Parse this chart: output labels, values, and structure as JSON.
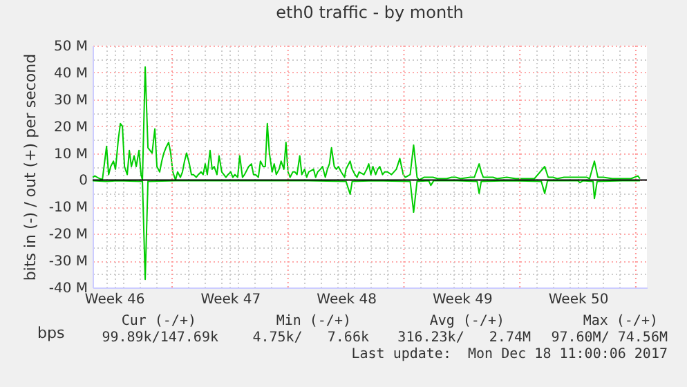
{
  "chart_data": {
    "type": "line",
    "title": "eth0 traffic - by month",
    "ylabel": "bits in (-) / out (+) per second",
    "xlim": [
      "2017-11-15T04:48",
      "2017-12-18T16:06"
    ],
    "ylim": [
      -40000000,
      50000000
    ],
    "xticks": [
      {
        "value": "2017-11-16T12:00",
        "label": "Week 46"
      },
      {
        "value": "2017-11-23T12:00",
        "label": "Week 47"
      },
      {
        "value": "2017-11-30T12:00",
        "label": "Week 48"
      },
      {
        "value": "2017-12-07T12:00",
        "label": "Week 49"
      },
      {
        "value": "2017-12-14T12:00",
        "label": "Week 50"
      },
      {
        "value": "2017-11-16T00:00",
        "label": null
      },
      {
        "value": "2017-11-17T00:00",
        "label": null
      },
      {
        "value": "2017-11-18T00:00",
        "label": null
      },
      {
        "value": "2017-11-19T00:00",
        "label": null
      },
      {
        "value": "2017-11-21T00:00",
        "label": null
      },
      {
        "value": "2017-11-22T00:00",
        "label": null
      },
      {
        "value": "2017-11-23T00:00",
        "label": null
      },
      {
        "value": "2017-11-24T00:00",
        "label": null
      },
      {
        "value": "2017-11-25T00:00",
        "label": null
      },
      {
        "value": "2017-11-26T00:00",
        "label": null
      },
      {
        "value": "2017-11-28T00:00",
        "label": null
      },
      {
        "value": "2017-11-29T00:00",
        "label": null
      },
      {
        "value": "2017-11-30T00:00",
        "label": null
      },
      {
        "value": "2017-12-01T00:00",
        "label": null
      },
      {
        "value": "2017-12-02T00:00",
        "label": null
      },
      {
        "value": "2017-12-03T00:00",
        "label": null
      },
      {
        "value": "2017-12-05T00:00",
        "label": null
      },
      {
        "value": "2017-12-06T00:00",
        "label": null
      },
      {
        "value": "2017-12-07T00:00",
        "label": null
      },
      {
        "value": "2017-12-08T00:00",
        "label": null
      },
      {
        "value": "2017-12-09T00:00",
        "label": null
      },
      {
        "value": "2017-12-10T00:00",
        "label": null
      },
      {
        "value": "2017-12-12T00:00",
        "label": null
      },
      {
        "value": "2017-12-13T00:00",
        "label": null
      },
      {
        "value": "2017-12-14T00:00",
        "label": null
      },
      {
        "value": "2017-12-15T00:00",
        "label": null
      },
      {
        "value": "2017-12-16T00:00",
        "label": null
      },
      {
        "value": "2017-12-17T00:00",
        "label": null
      }
    ],
    "yticks": [
      {
        "value": 50000000,
        "label": "50 M"
      },
      {
        "value": 40000000,
        "label": "40 M"
      },
      {
        "value": 30000000,
        "label": "30 M"
      },
      {
        "value": 20000000,
        "label": "20 M"
      },
      {
        "value": 10000000,
        "label": "10 M"
      },
      {
        "value": 0,
        "label": "0"
      },
      {
        "value": -10000000,
        "label": "-10 M"
      },
      {
        "value": -20000000,
        "label": "-20 M"
      },
      {
        "value": -30000000,
        "label": "-30 M"
      },
      {
        "value": -40000000,
        "label": "-40 M"
      },
      {
        "value": 45000000,
        "label": null
      },
      {
        "value": 35000000,
        "label": null
      },
      {
        "value": 25000000,
        "label": null
      },
      {
        "value": 15000000,
        "label": null
      },
      {
        "value": 5000000,
        "label": null
      },
      {
        "value": -5000000,
        "label": null
      },
      {
        "value": -15000000,
        "label": null
      },
      {
        "value": -25000000,
        "label": null
      },
      {
        "value": -35000000,
        "label": null
      }
    ],
    "grid": true,
    "legend": "bottom left",
    "series": [
      {
        "name": "bps",
        "color": "#00cc00",
        "x": [
          "2017-11-15T05:00",
          "2017-11-15T08:00",
          "2017-11-15T15:00",
          "2017-11-15T19:00",
          "2017-11-16T01:00",
          "2017-11-16T04:00",
          "2017-11-16T07:00",
          "2017-11-16T11:00",
          "2017-11-16T14:00",
          "2017-11-16T18:00",
          "2017-11-16T21:00",
          "2017-11-17T00:00",
          "2017-11-17T03:00",
          "2017-11-17T07:00",
          "2017-11-17T10:00",
          "2017-11-17T13:00",
          "2017-11-17T17:00",
          "2017-11-17T20:00",
          "2017-11-18T00:00",
          "2017-11-18T03:00",
          "2017-11-18T05:00",
          "2017-11-18T09:00",
          "2017-11-18T13:00",
          "2017-11-18T16:00",
          "2017-11-18T19:00",
          "2017-11-18T23:00",
          "2017-11-19T02:00",
          "2017-11-19T06:00",
          "2017-11-19T09:00",
          "2017-11-19T12:00",
          "2017-11-19T15:00",
          "2017-11-19T19:00",
          "2017-11-19T22:00",
          "2017-11-20T01:00",
          "2017-11-20T05:00",
          "2017-11-20T08:00",
          "2017-11-20T12:00",
          "2017-11-20T15:00",
          "2017-11-20T18:00",
          "2017-11-20T21:00",
          "2017-11-21T01:00",
          "2017-11-21T04:00",
          "2017-11-21T07:00",
          "2017-11-21T11:00",
          "2017-11-21T14:00",
          "2017-11-21T18:00",
          "2017-11-21T21:00",
          "2017-11-22T00:00",
          "2017-11-22T03:00",
          "2017-11-22T07:00",
          "2017-11-22T10:00",
          "2017-11-22T13:00",
          "2017-11-22T17:00",
          "2017-11-22T20:00",
          "2017-11-23T00:00",
          "2017-11-23T03:00",
          "2017-11-23T06:00",
          "2017-11-23T09:00",
          "2017-11-23T13:00",
          "2017-11-23T16:00",
          "2017-11-23T19:00",
          "2017-11-23T23:00",
          "2017-11-24T02:00",
          "2017-11-24T06:00",
          "2017-11-24T09:00",
          "2017-11-24T15:00",
          "2017-11-24T19:00",
          "2017-11-24T22:00",
          "2017-11-25T01:00",
          "2017-11-25T05:00",
          "2017-11-25T08:00",
          "2017-11-25T12:00",
          "2017-11-25T15:00",
          "2017-11-25T18:00",
          "2017-11-25T21:00",
          "2017-11-26T01:00",
          "2017-11-26T04:00",
          "2017-11-26T07:00",
          "2017-11-26T11:00",
          "2017-11-26T14:00",
          "2017-11-26T18:00",
          "2017-11-26T21:00",
          "2017-11-27T00:00",
          "2017-11-27T03:00",
          "2017-11-27T07:00",
          "2017-11-27T10:00",
          "2017-11-27T13:00",
          "2017-11-27T17:00",
          "2017-11-27T20:00",
          "2017-11-28T00:00",
          "2017-11-28T03:00",
          "2017-11-28T06:00",
          "2017-11-28T13:00",
          "2017-11-28T16:00",
          "2017-11-28T19:00",
          "2017-11-28T23:00",
          "2017-11-29T02:00",
          "2017-11-29T06:00",
          "2017-11-29T09:00",
          "2017-11-29T12:00",
          "2017-11-29T15:00",
          "2017-11-29T19:00",
          "2017-11-29T22:00",
          "2017-11-30T01:00",
          "2017-11-30T05:00",
          "2017-11-30T10:00",
          "2017-11-30T12:00",
          "2017-11-30T18:00",
          "2017-11-30T21:00",
          "2017-12-01T01:00",
          "2017-12-01T04:00",
          "2017-12-01T07:00",
          "2017-12-01T14:00",
          "2017-12-01T18:00",
          "2017-12-01T21:00",
          "2017-12-02T00:00",
          "2017-12-02T03:00",
          "2017-12-02T07:00",
          "2017-12-02T10:00",
          "2017-12-02T13:00",
          "2017-12-02T17:00",
          "2017-12-02T20:00",
          "2017-12-03T00:00",
          "2017-12-03T06:00",
          "2017-12-03T13:00",
          "2017-12-03T18:00",
          "2017-12-03T23:00",
          "2017-12-04T02:00",
          "2017-12-04T09:00",
          "2017-12-04T14:00",
          "2017-12-04T19:00",
          "2017-12-04T22:00",
          "2017-12-05T05:00",
          "2017-12-05T12:00",
          "2017-12-05T18:00",
          "2017-12-06T01:00",
          "2017-12-06T14:00",
          "2017-12-06T21:00",
          "2017-12-07T03:00",
          "2017-12-07T10:00",
          "2017-12-08T00:00",
          "2017-12-08T06:00",
          "2017-12-08T13:00",
          "2017-12-08T16:00",
          "2017-12-08T19:00",
          "2017-12-09T02:00",
          "2017-12-09T09:00",
          "2017-12-09T15:00",
          "2017-12-10T05:00",
          "2017-12-10T18:00",
          "2017-12-11T07:00",
          "2017-12-11T21:00",
          "2017-12-12T12:00",
          "2017-12-12T17:00",
          "2017-12-13T00:00",
          "2017-12-13T06:00",
          "2017-12-13T16:00",
          "2017-12-14T02:00",
          "2017-12-14T15:00",
          "2017-12-15T01:00",
          "2017-12-15T05:00",
          "2017-12-15T12:00",
          "2017-12-15T17:00",
          "2017-12-16T01:00",
          "2017-12-16T14:00",
          "2017-12-17T03:00",
          "2017-12-17T17:00",
          "2017-12-18T03:00",
          "2017-12-18T06:00"
        ],
        "values": [
          1000000,
          1500000,
          500000,
          200000,
          12500000,
          2000000,
          5000000,
          7000000,
          4000000,
          15000000,
          21000000,
          20000000,
          5000000,
          2000000,
          11000000,
          5000000,
          9000000,
          5000000,
          11000000,
          2000000,
          0,
          42000000,
          12000000,
          11000000,
          10000000,
          19000000,
          5000000,
          3000000,
          7000000,
          10000000,
          12000000,
          14000000,
          10000000,
          3000000,
          0,
          3000000,
          1000000,
          3000000,
          7000000,
          10000000,
          6000000,
          2000000,
          2000000,
          1000000,
          2000000,
          3000000,
          2000000,
          6000000,
          2000000,
          11000000,
          4000000,
          5000000,
          2000000,
          9000000,
          3000000,
          2000000,
          1000000,
          2000000,
          3000000,
          1000000,
          2000000,
          1000000,
          9000000,
          1000000,
          2000000,
          5000000,
          6000000,
          2000000,
          2000000,
          1000000,
          7000000,
          5000000,
          5000000,
          21000000,
          10000000,
          3000000,
          6000000,
          2000000,
          4000000,
          7000000,
          4000000,
          14000000,
          3000000,
          1000000,
          3000000,
          3000000,
          2000000,
          9000000,
          2000000,
          4000000,
          1000000,
          3000000,
          4000000,
          1000000,
          3000000,
          4000000,
          5000000,
          1000000,
          4000000,
          6000000,
          12000000,
          5000000,
          4000000,
          5000000,
          3000000,
          1000000,
          4000000,
          7000000,
          4000000,
          2000000,
          1000000,
          3000000,
          2000000,
          4000000,
          6000000,
          2000000,
          5000000,
          2000000,
          4000000,
          5000000,
          2000000,
          3000000,
          3000000,
          2000000,
          4000000,
          8000000,
          2000000,
          1000000,
          2000000,
          13000000,
          1000000,
          0,
          1000000,
          1000000,
          1000000,
          500000,
          500000,
          1000000,
          1000000,
          500000,
          1000000,
          1000000,
          6000000,
          3000000,
          1000000,
          1000000,
          1000000,
          500000,
          1000000,
          500000,
          500000,
          500000,
          5000000,
          1000000,
          1000000,
          500000,
          1000000,
          1000000,
          1000000,
          1000000,
          500000,
          7000000,
          1000000,
          1000000,
          500000,
          500000,
          500000,
          1500000,
          500000
        ]
      },
      {
        "color": "#00cc00",
        "x": [
          "2017-11-15T05:00",
          "2017-11-16T01:00",
          "2017-11-16T17:00",
          "2017-11-18T05:00",
          "2017-11-18T09:00",
          "2017-11-18T13:00",
          "2017-11-20T05:00",
          "2017-11-22T05:00",
          "2017-11-24T05:00",
          "2017-11-26T05:00",
          "2017-11-28T05:00",
          "2017-11-30T12:00",
          "2017-11-30T18:00",
          "2017-11-30T21:00",
          "2017-12-02T05:00",
          "2017-12-04T09:00",
          "2017-12-04T14:00",
          "2017-12-04T19:00",
          "2017-12-05T12:00",
          "2017-12-05T15:00",
          "2017-12-05T19:00",
          "2017-12-07T05:00",
          "2017-12-08T10:00",
          "2017-12-08T13:00",
          "2017-12-08T16:00",
          "2017-12-10T05:00",
          "2017-12-12T07:00",
          "2017-12-12T12:00",
          "2017-12-12T16:00",
          "2017-12-14T12:00",
          "2017-12-14T15:00",
          "2017-12-14T19:00",
          "2017-12-15T10:00",
          "2017-12-15T12:00",
          "2017-12-15T16:00",
          "2017-12-17T05:00",
          "2017-12-18T06:00"
        ],
        "values": [
          -300000,
          -500000,
          -300000,
          -500000,
          -37000000,
          -500000,
          -300000,
          -300000,
          -300000,
          -300000,
          -300000,
          -500000,
          -5300000,
          -500000,
          -300000,
          -500000,
          -12000000,
          -500000,
          -300000,
          -2000000,
          -300000,
          -300000,
          -500000,
          -5000000,
          -500000,
          -300000,
          -500000,
          -5000000,
          -300000,
          -300000,
          -1000000,
          -300000,
          -500000,
          -6900000,
          -500000,
          -300000,
          -300000
        ]
      }
    ],
    "ref_lines": [
      {
        "axis": "y",
        "value": 0,
        "color": "#000000",
        "line_style": "solid"
      },
      {
        "axis": "x",
        "value": "2017-11-20T00:00",
        "color": "#ff9999",
        "line_style": "dotted"
      },
      {
        "axis": "x",
        "value": "2017-11-27T00:00",
        "color": "#ff9999",
        "line_style": "dotted"
      },
      {
        "axis": "x",
        "value": "2017-12-04T00:00",
        "color": "#ff9999",
        "line_style": "dotted"
      },
      {
        "axis": "x",
        "value": "2017-12-11T00:00",
        "color": "#ff9999",
        "line_style": "dotted"
      },
      {
        "axis": "x",
        "value": "2017-12-18T00:00",
        "color": "#ff9999",
        "line_style": "dotted"
      }
    ],
    "annotations": [
      "Cur (-/+)",
      "Min (-/+)",
      "Avg (-/+)",
      "Max (-/+)",
      "99.89k/147.69k",
      "4.75k/   7.66k",
      "316.23k/   2.74M",
      "97.60M/ 74.56M",
      "Last update:  Mon Dec 18 11:00:06 2017"
    ]
  }
}
